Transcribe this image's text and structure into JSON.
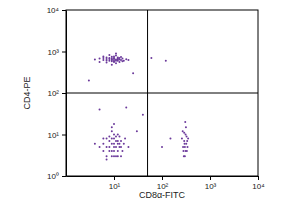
{
  "chart_data": {
    "type": "scatter",
    "xlabel": "CD8α-FITC",
    "ylabel": "CD4-PE",
    "log": true,
    "color": "#6b3a9b",
    "marker": "circle",
    "gate_x": 50,
    "gate_y": 100,
    "xlim": [
      1,
      10000
    ],
    "xticks": [
      {
        "value": 10,
        "label": "10¹"
      },
      {
        "value": 100,
        "label": "10²"
      },
      {
        "value": 1000,
        "label": "10³"
      },
      {
        "value": 10000,
        "label": "10⁴"
      }
    ],
    "ylim": [
      1,
      10000
    ],
    "yticks": [
      {
        "value": 1,
        "label": "10⁰"
      },
      {
        "value": 10,
        "label": "10¹"
      },
      {
        "value": 100,
        "label": "10²"
      },
      {
        "value": 1000,
        "label": "10³"
      },
      {
        "value": 10000,
        "label": "10⁴"
      }
    ],
    "x": [
      6,
      8,
      10,
      12,
      9,
      7,
      11,
      14,
      5,
      13,
      9,
      10,
      8,
      12,
      15,
      6,
      11,
      7,
      10,
      9,
      13,
      16,
      4,
      12,
      8,
      10,
      11,
      9,
      7,
      14,
      18,
      10,
      8,
      12,
      9,
      11,
      6,
      13,
      10,
      7,
      20,
      5,
      15,
      9,
      11,
      8,
      10,
      12,
      9,
      7,
      11,
      14,
      6,
      10,
      13,
      9,
      8,
      12,
      10,
      15,
      7,
      11,
      9,
      13,
      6,
      10,
      12,
      8,
      14,
      9,
      11,
      7,
      16,
      10,
      5,
      12,
      9,
      11,
      8,
      13,
      10,
      6,
      14,
      9,
      12,
      7,
      10,
      17,
      4,
      20,
      280,
      320,
      300,
      260,
      340,
      310,
      290,
      330,
      270,
      300,
      350,
      285,
      315,
      295,
      325,
      305,
      275,
      335,
      290,
      310,
      40,
      3,
      25,
      60,
      150,
      30,
      100,
      5,
      18,
      120
    ],
    "y": [
      620,
      700,
      580,
      650,
      750,
      540,
      800,
      620,
      680,
      560,
      640,
      700,
      600,
      720,
      680,
      760,
      520,
      660,
      620,
      580,
      700,
      600,
      640,
      600,
      820,
      680,
      640,
      690,
      610,
      740,
      650,
      560,
      660,
      680,
      620,
      600,
      700,
      640,
      760,
      720,
      620,
      560,
      580,
      480,
      900,
      5,
      6,
      4,
      8,
      3,
      5,
      7,
      6,
      3,
      9,
      4,
      7,
      6,
      10,
      4,
      5,
      3,
      6,
      5,
      4,
      8,
      3,
      9,
      5,
      12,
      7,
      8,
      6,
      4,
      5,
      10,
      3,
      9,
      4,
      6,
      5,
      8,
      3,
      15,
      7,
      2.5,
      18,
      8,
      6,
      5,
      4,
      6,
      3,
      8,
      5,
      10,
      7,
      4,
      12,
      5,
      8,
      3,
      15,
      6,
      9,
      20,
      5,
      7,
      11,
      4,
      30,
      200,
      300,
      700,
      8,
      12,
      5,
      40,
      45,
      600
    ]
  }
}
